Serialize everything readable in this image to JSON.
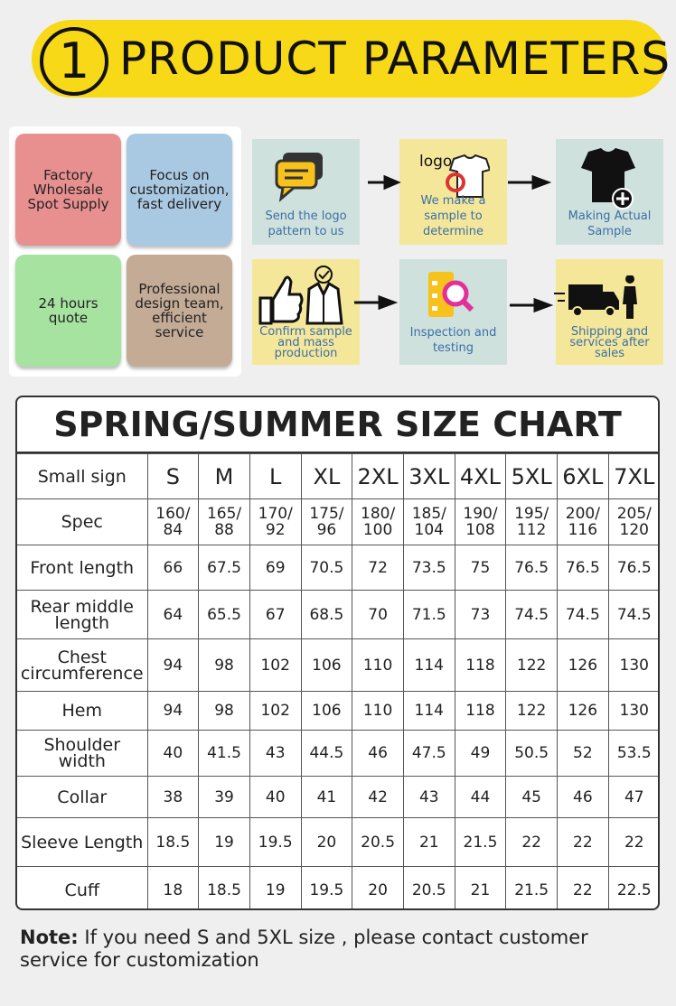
{
  "header": {
    "number": "1",
    "title": "PRODUCT PARAMETERS"
  },
  "features": [
    "Factory Wholesale Spot Supply",
    "Focus on customization, fast delivery",
    "24 hours quote",
    "Professional design team, efficient service"
  ],
  "process": {
    "logo_text": "logo",
    "steps": [
      "Send the logo pattern to us",
      "We make a sample to determine",
      "Making Actual Sample",
      "Confirm sample and mass production",
      "Inspection and testing",
      "Shipping and services after sales"
    ]
  },
  "size_chart": {
    "title": "SPRING/SUMMER SIZE CHART",
    "header": [
      "Small sign",
      "S",
      "M",
      "L",
      "XL",
      "2XL",
      "3XL",
      "4XL",
      "5XL",
      "6XL",
      "7XL"
    ],
    "rows": [
      [
        "Spec",
        "160/84",
        "165/88",
        "170/92",
        "175/96",
        "180/100",
        "185/104",
        "190/108",
        "195/112",
        "200/116",
        "205/120"
      ],
      [
        "Front length",
        66,
        67.5,
        69,
        70.5,
        72,
        73.5,
        75,
        76.5,
        76.5,
        76.5
      ],
      [
        "Rear middle length",
        64,
        65.5,
        67,
        68.5,
        70,
        71.5,
        73,
        74.5,
        74.5,
        74.5
      ],
      [
        "Chest circumference",
        94,
        98,
        102,
        106,
        110,
        114,
        118,
        122,
        126,
        130
      ],
      [
        "Hem",
        94,
        98,
        102,
        106,
        110,
        114,
        118,
        122,
        126,
        130
      ],
      [
        "Shoulder width",
        40,
        41.5,
        43,
        44.5,
        46,
        47.5,
        49,
        50.5,
        52,
        53.5
      ],
      [
        "Collar",
        38,
        39,
        40,
        41,
        42,
        43,
        44,
        45,
        46,
        47
      ],
      [
        "Sleeve Length",
        18.5,
        19,
        19.5,
        20,
        20.5,
        21,
        21.5,
        22,
        22,
        22
      ],
      [
        "Cuff",
        18,
        18.5,
        19,
        19.5,
        20,
        20.5,
        21,
        21.5,
        22,
        22.5
      ]
    ]
  },
  "note": {
    "label": "Note:",
    "text": "If you need S and 5XL size , please contact customer service for customization"
  }
}
